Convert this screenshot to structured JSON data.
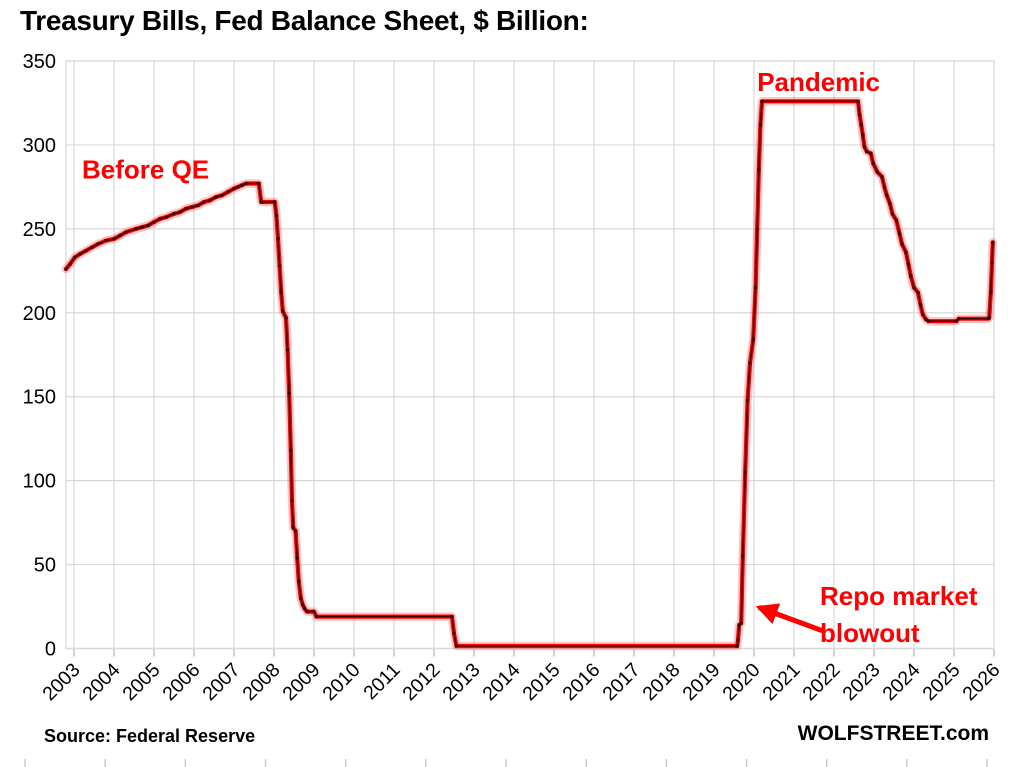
{
  "page": {
    "title": "Treasury Bills, Fed Balance Sheet, $ Billion:",
    "source_note": "Source: Federal Reserve",
    "branding": "WOLFSTREET.com"
  },
  "colors": {
    "line": "#ff0000",
    "line_halo": "#ff0000",
    "marker_core": "#330000",
    "annotation": "#ff0000",
    "grid": "#d9d9d9",
    "axis": "#b3b3b3",
    "ruler": "#c9c9c9",
    "text": "#000000",
    "background": "#ffffff"
  },
  "chart_data": {
    "type": "line",
    "title": "Treasury Bills, Fed Balance Sheet, $ Billion:",
    "xlabel": "",
    "ylabel": "$ Billion",
    "ylim": [
      0,
      350
    ],
    "yticks": [
      0,
      50,
      100,
      150,
      200,
      250,
      300,
      350
    ],
    "xticks": [
      2003,
      2004,
      2005,
      2006,
      2007,
      2008,
      2009,
      2010,
      2011,
      2012,
      2013,
      2014,
      2015,
      2016,
      2017,
      2018,
      2019,
      2020,
      2021,
      2022,
      2023,
      2024,
      2025,
      2026
    ],
    "x_range": [
      2002.78,
      2026.3
    ],
    "grid": true,
    "legend_position": "none",
    "series": [
      {
        "name": "Treasury bills held on Fed balance sheet, $ billion",
        "color": "#ff0000",
        "points": [
          [
            2002.8,
            226
          ],
          [
            2002.9,
            229
          ],
          [
            2003.02,
            233
          ],
          [
            2003.15,
            235
          ],
          [
            2003.3,
            237
          ],
          [
            2003.45,
            239
          ],
          [
            2003.6,
            241
          ],
          [
            2003.8,
            243
          ],
          [
            2004.0,
            244
          ],
          [
            2004.15,
            246
          ],
          [
            2004.3,
            248
          ],
          [
            2004.55,
            250
          ],
          [
            2004.7,
            251
          ],
          [
            2004.85,
            252
          ],
          [
            2005.0,
            254
          ],
          [
            2005.15,
            256
          ],
          [
            2005.3,
            257
          ],
          [
            2005.5,
            259
          ],
          [
            2005.65,
            260
          ],
          [
            2005.8,
            262
          ],
          [
            2005.95,
            263
          ],
          [
            2006.1,
            264
          ],
          [
            2006.25,
            266
          ],
          [
            2006.4,
            267
          ],
          [
            2006.55,
            269
          ],
          [
            2006.7,
            270
          ],
          [
            2006.85,
            272
          ],
          [
            2007.0,
            274
          ],
          [
            2007.1,
            275
          ],
          [
            2007.2,
            276
          ],
          [
            2007.3,
            277
          ],
          [
            2007.62,
            277
          ],
          [
            2007.68,
            266
          ],
          [
            2008.02,
            266
          ],
          [
            2008.06,
            258
          ],
          [
            2008.1,
            244
          ],
          [
            2008.14,
            228
          ],
          [
            2008.18,
            212
          ],
          [
            2008.22,
            201
          ],
          [
            2008.3,
            197
          ],
          [
            2008.34,
            178
          ],
          [
            2008.38,
            152
          ],
          [
            2008.42,
            118
          ],
          [
            2008.45,
            88
          ],
          [
            2008.48,
            72
          ],
          [
            2008.54,
            70
          ],
          [
            2008.58,
            54
          ],
          [
            2008.62,
            40
          ],
          [
            2008.67,
            30
          ],
          [
            2008.72,
            26
          ],
          [
            2008.76,
            24
          ],
          [
            2008.82,
            22
          ],
          [
            2009.0,
            22
          ],
          [
            2009.06,
            19
          ],
          [
            2012.45,
            19
          ],
          [
            2012.5,
            9
          ],
          [
            2012.56,
            1.5
          ],
          [
            2019.58,
            1.5
          ],
          [
            2019.6,
            5
          ],
          [
            2019.63,
            14
          ],
          [
            2019.68,
            15
          ],
          [
            2019.72,
            55
          ],
          [
            2019.78,
            105
          ],
          [
            2019.84,
            148
          ],
          [
            2019.9,
            170
          ],
          [
            2019.98,
            184
          ],
          [
            2020.04,
            215
          ],
          [
            2020.08,
            250
          ],
          [
            2020.12,
            285
          ],
          [
            2020.16,
            312
          ],
          [
            2020.2,
            326
          ],
          [
            2022.6,
            326
          ],
          [
            2022.64,
            318
          ],
          [
            2022.68,
            312
          ],
          [
            2022.72,
            306
          ],
          [
            2022.76,
            299
          ],
          [
            2022.82,
            296
          ],
          [
            2022.92,
            295
          ],
          [
            2022.98,
            289
          ],
          [
            2023.08,
            284
          ],
          [
            2023.2,
            281
          ],
          [
            2023.26,
            275
          ],
          [
            2023.32,
            270
          ],
          [
            2023.4,
            265
          ],
          [
            2023.46,
            259
          ],
          [
            2023.56,
            255
          ],
          [
            2023.64,
            247
          ],
          [
            2023.7,
            241
          ],
          [
            2023.8,
            236
          ],
          [
            2023.86,
            229
          ],
          [
            2023.92,
            222
          ],
          [
            2024.0,
            215
          ],
          [
            2024.1,
            212
          ],
          [
            2024.16,
            205
          ],
          [
            2024.22,
            199
          ],
          [
            2024.3,
            196
          ],
          [
            2024.36,
            195
          ],
          [
            2025.06,
            195
          ],
          [
            2025.12,
            196.5
          ],
          [
            2025.86,
            196.5
          ],
          [
            2025.88,
            197
          ],
          [
            2025.92,
            212
          ],
          [
            2025.95,
            230
          ],
          [
            2025.97,
            242
          ]
        ]
      }
    ],
    "annotations": [
      {
        "id": "before-qe",
        "lines": [
          "Before QE"
        ],
        "x": 2003.2,
        "y": 280,
        "anchor": "start"
      },
      {
        "id": "pandemic",
        "lines": [
          "Pandemic"
        ],
        "x": 2020.08,
        "y": 332,
        "anchor": "start"
      },
      {
        "id": "repo-blowout",
        "lines": [
          "Repo market",
          "blowout"
        ],
        "x": 2021.65,
        "y": 26,
        "anchor": "start",
        "arrow": {
          "from_x": 2021.72,
          "from_y": 10.5,
          "to_x": 2020.12,
          "to_y": 24.5
        }
      }
    ]
  }
}
